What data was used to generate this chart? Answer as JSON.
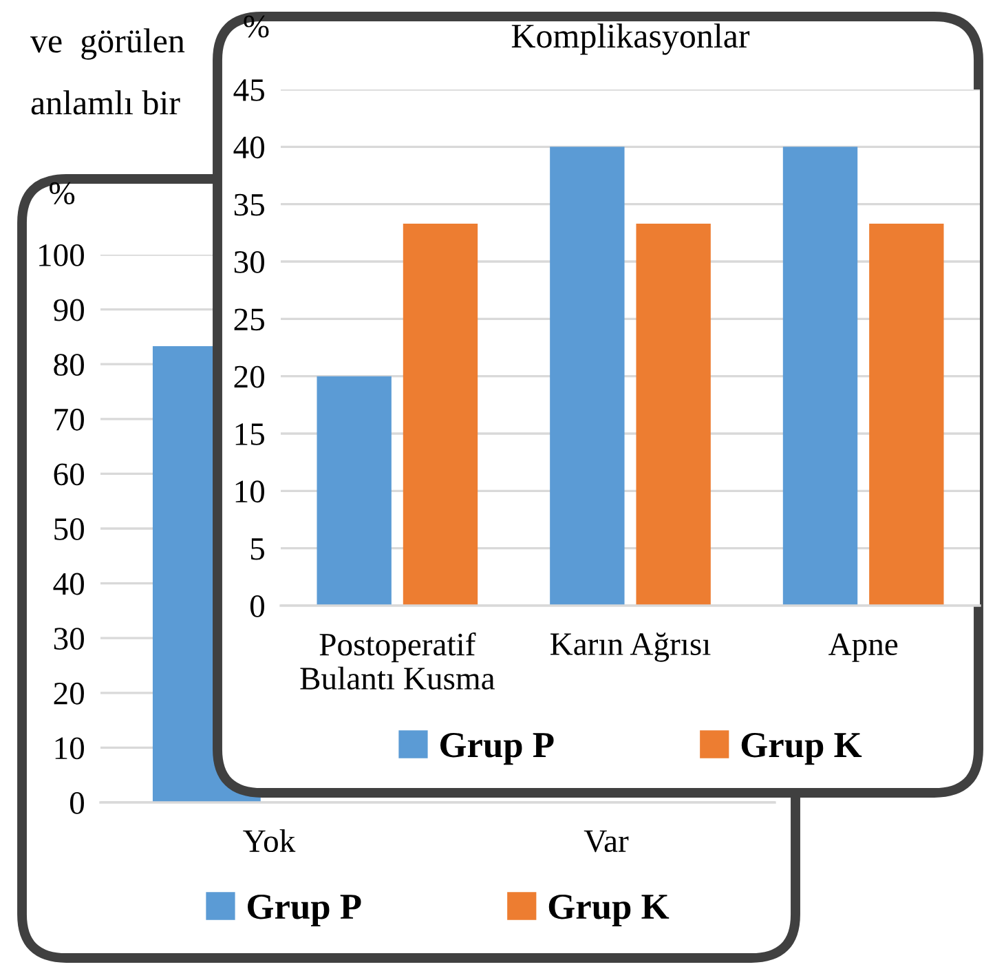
{
  "chart_data": [
    {
      "type": "bar",
      "ylabel": "%",
      "categories": [
        "Yok",
        "Var"
      ],
      "series": [
        {
          "name": "Grup P",
          "color": "#5b9bd5",
          "values": [
            83.3,
            null
          ]
        },
        {
          "name": "Grup K",
          "color": "#ed7d31",
          "values": [
            null,
            null
          ]
        }
      ],
      "ylim": [
        0,
        100
      ],
      "yticks": [
        0,
        10,
        20,
        30,
        40,
        50,
        60,
        70,
        80,
        90,
        100
      ],
      "grid": "y",
      "legend": "bottom",
      "annotations": [
        "ve  görülen",
        "anlamlı bir"
      ]
    },
    {
      "type": "bar",
      "title": "Komplikasyonlar",
      "ylabel": "%",
      "categories": [
        "Postoperatif\nBulantı Kusma",
        "Karın Ağrısı",
        "Apne"
      ],
      "series": [
        {
          "name": "Grup P",
          "color": "#5b9bd5",
          "values": [
            20,
            40,
            40
          ]
        },
        {
          "name": "Grup K",
          "color": "#ed7d31",
          "values": [
            33.3,
            33.3,
            33.3
          ]
        }
      ],
      "ylim": [
        0,
        45
      ],
      "yticks": [
        0,
        5,
        10,
        15,
        20,
        25,
        30,
        35,
        40,
        45
      ],
      "grid": "y",
      "legend": "bottom"
    }
  ]
}
